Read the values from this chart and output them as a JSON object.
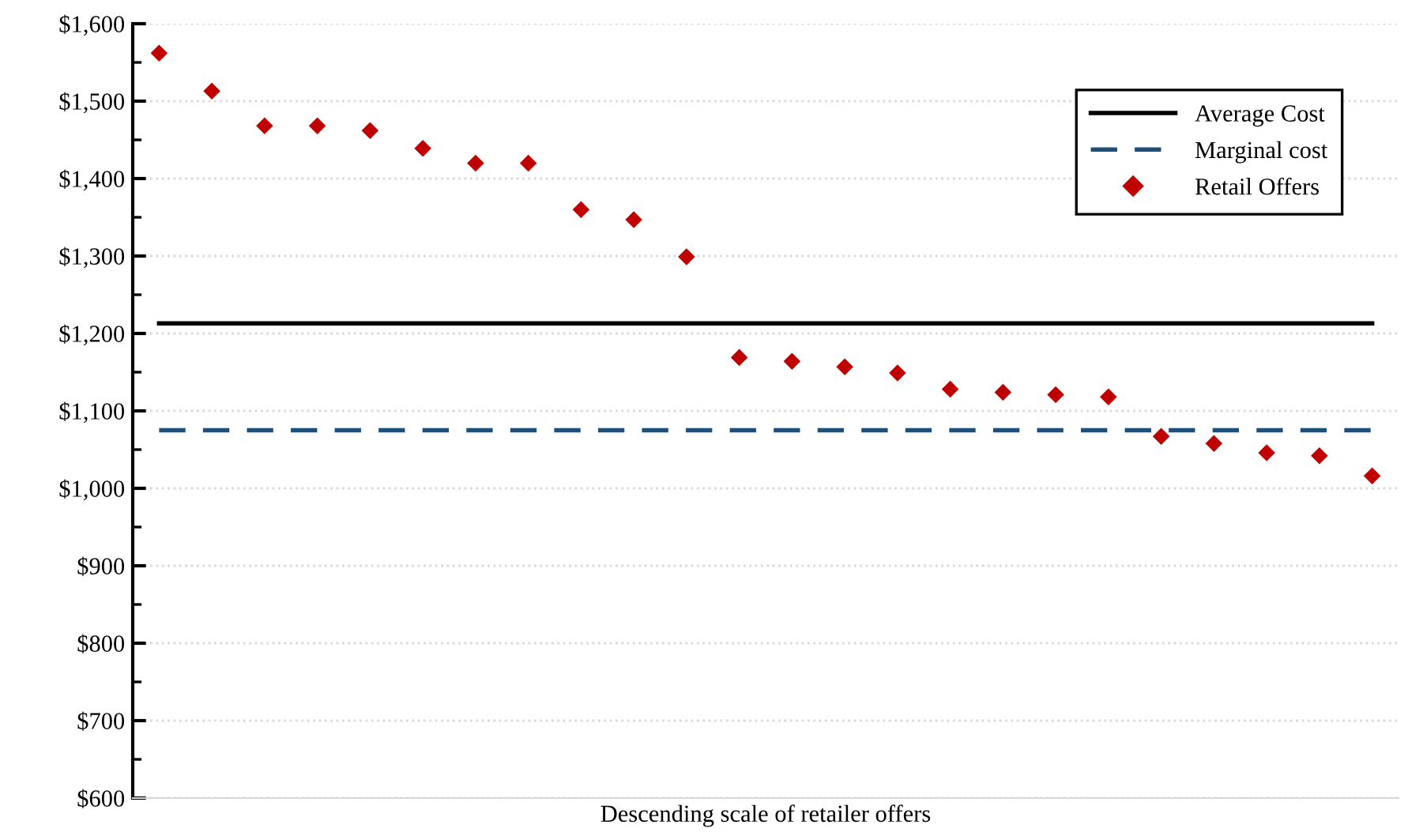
{
  "chart_data": {
    "type": "scatter",
    "xlabel": "Descending scale of retailer offers",
    "categories": [
      null,
      null,
      null,
      null,
      null,
      null,
      null,
      null,
      null,
      null,
      null,
      null,
      null,
      null,
      null,
      null,
      null,
      null,
      null,
      null,
      null,
      null,
      null,
      null
    ],
    "series": [
      {
        "name": "Average Cost",
        "type": "line",
        "line_style": "solid",
        "marker": "none",
        "color": "#000000",
        "values": [
          1213,
          1213,
          1213,
          1213,
          1213,
          1213,
          1213,
          1213,
          1213,
          1213,
          1213,
          1213,
          1213,
          1213,
          1213,
          1213,
          1213,
          1213,
          1213,
          1213,
          1213,
          1213,
          1213,
          1213
        ]
      },
      {
        "name": "Marginal cost",
        "type": "line",
        "line_style": "dashed",
        "marker": "none",
        "color": "#1f4e79",
        "values": [
          1075,
          1075,
          1075,
          1075,
          1075,
          1075,
          1075,
          1075,
          1075,
          1075,
          1075,
          1075,
          1075,
          1075,
          1075,
          1075,
          1075,
          1075,
          1075,
          1075,
          1075,
          1075,
          1075,
          1075
        ]
      },
      {
        "name": "Retail Offers",
        "marker": "diamond",
        "color": "#c00000",
        "values": [
          1562,
          1513,
          1468,
          1468,
          1462,
          1439,
          1420,
          1420,
          1360,
          1347,
          1299,
          1169,
          1164,
          1157,
          1149,
          1128,
          1124,
          1121,
          1118,
          1067,
          1058,
          1046,
          1042,
          1016
        ]
      }
    ],
    "ylim": [
      600,
      1600
    ],
    "yticks": [
      {
        "value": 600,
        "label": "$600"
      },
      {
        "value": 650,
        "label": null
      },
      {
        "value": 700,
        "label": "$700"
      },
      {
        "value": 750,
        "label": null
      },
      {
        "value": 800,
        "label": "$800"
      },
      {
        "value": 850,
        "label": null
      },
      {
        "value": 900,
        "label": "$900"
      },
      {
        "value": 950,
        "label": null
      },
      {
        "value": 1000,
        "label": "$1,000"
      },
      {
        "value": 1050,
        "label": null
      },
      {
        "value": 1100,
        "label": "$1,100"
      },
      {
        "value": 1150,
        "label": null
      },
      {
        "value": 1200,
        "label": "$1,200"
      },
      {
        "value": 1250,
        "label": null
      },
      {
        "value": 1300,
        "label": "$1,300"
      },
      {
        "value": 1350,
        "label": null
      },
      {
        "value": 1400,
        "label": "$1,400"
      },
      {
        "value": 1450,
        "label": null
      },
      {
        "value": 1500,
        "label": "$1,500"
      },
      {
        "value": 1550,
        "label": null
      },
      {
        "value": 1600,
        "label": "$1,600"
      }
    ],
    "tick_labels": "y",
    "grid": "y",
    "legend": "top right"
  }
}
